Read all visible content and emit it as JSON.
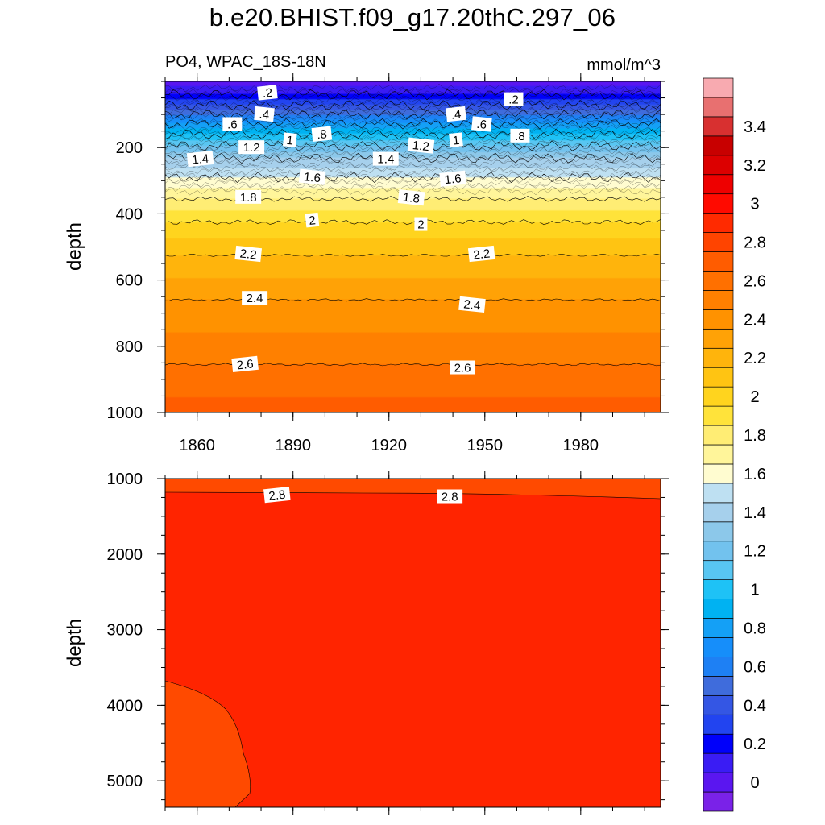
{
  "page": {
    "title": "b.e20.BHIST.f09_g17.20thC.297_06"
  },
  "chart_data": [
    {
      "type": "heatmap",
      "subtitle_left": "PO4, WPAC_18S-18N",
      "subtitle_right": "mmol/m^3",
      "ylabel": "depth",
      "xlim": [
        1850,
        2005
      ],
      "ylim": [
        1000,
        0
      ],
      "x_ticks": [
        1860,
        1890,
        1920,
        1950,
        1980
      ],
      "y_ticks": [
        200,
        400,
        600,
        800,
        1000
      ],
      "contour_levels": [
        {
          "value": 0.2,
          "depth": 40
        },
        {
          "value": 0.4,
          "depth": 72
        },
        {
          "value": 0.6,
          "depth": 100
        },
        {
          "value": 0.8,
          "depth": 128
        },
        {
          "value": 1.0,
          "depth": 160
        },
        {
          "value": 1.2,
          "depth": 195
        },
        {
          "value": 1.4,
          "depth": 232
        },
        {
          "value": 1.6,
          "depth": 290
        },
        {
          "value": 1.8,
          "depth": 355
        },
        {
          "value": 2.0,
          "depth": 425
        },
        {
          "value": 2.2,
          "depth": 525
        },
        {
          "value": 2.4,
          "depth": 660
        },
        {
          "value": 2.6,
          "depth": 855
        }
      ],
      "contour_labels": [
        {
          "text": ".2",
          "x": 1882,
          "depth": 35
        },
        {
          "text": ".2",
          "x": 1959,
          "depth": 55
        },
        {
          "text": ".4",
          "x": 1881,
          "depth": 100
        },
        {
          "text": ".4",
          "x": 1941,
          "depth": 100
        },
        {
          "text": ".6",
          "x": 1871,
          "depth": 130
        },
        {
          "text": ".6",
          "x": 1949,
          "depth": 130
        },
        {
          "text": ".8",
          "x": 1899,
          "depth": 160
        },
        {
          "text": ".8",
          "x": 1961,
          "depth": 165
        },
        {
          "text": "1",
          "x": 1889,
          "depth": 178
        },
        {
          "text": "1",
          "x": 1941,
          "depth": 178
        },
        {
          "text": "1.2",
          "x": 1877,
          "depth": 200
        },
        {
          "text": "1.2",
          "x": 1930,
          "depth": 195
        },
        {
          "text": "1.4",
          "x": 1861,
          "depth": 235
        },
        {
          "text": "1.4",
          "x": 1919,
          "depth": 235
        },
        {
          "text": "1.6",
          "x": 1896,
          "depth": 290
        },
        {
          "text": "1.6",
          "x": 1940,
          "depth": 295
        },
        {
          "text": "1.8",
          "x": 1876,
          "depth": 350
        },
        {
          "text": "1.8",
          "x": 1927,
          "depth": 352
        },
        {
          "text": "2",
          "x": 1896,
          "depth": 420
        },
        {
          "text": "2",
          "x": 1930,
          "depth": 432
        },
        {
          "text": "2.2",
          "x": 1876,
          "depth": 522
        },
        {
          "text": "2.2",
          "x": 1949,
          "depth": 522
        },
        {
          "text": "2.4",
          "x": 1878,
          "depth": 655
        },
        {
          "text": "2.4",
          "x": 1946,
          "depth": 675
        },
        {
          "text": "2.6",
          "x": 1875,
          "depth": 855
        },
        {
          "text": "2.6",
          "x": 1943,
          "depth": 865
        }
      ]
    },
    {
      "type": "heatmap",
      "ylabel": "depth",
      "xlim": [
        1850,
        2005
      ],
      "ylim": [
        5350,
        1000
      ],
      "y_ticks": [
        1000,
        2000,
        3000,
        4000,
        5000
      ],
      "background_value": 2.85,
      "contour_levels": [
        {
          "value": 2.8,
          "depth": 1200
        }
      ],
      "deep_region": {
        "value": 2.75,
        "note": "lower-left patch below about 3700 m"
      },
      "contour_labels": [
        {
          "text": "2.8",
          "x": 1885,
          "depth": 1220
        },
        {
          "text": "2.8",
          "x": 1939,
          "depth": 1240
        }
      ]
    }
  ],
  "colorbar": {
    "tick_labels": [
      "0",
      "0.2",
      "0.4",
      "0.6",
      "0.8",
      "1",
      "1.2",
      "1.4",
      "1.6",
      "1.8",
      "2",
      "2.2",
      "2.4",
      "2.6",
      "2.8",
      "3",
      "3.2",
      "3.4"
    ],
    "colors": [
      "#7a22e8",
      "#5a16f0",
      "#3a1cf4",
      "#0000fa",
      "#2244f0",
      "#3456e4",
      "#3f6cdc",
      "#1e80f4",
      "#168efa",
      "#14a0f6",
      "#00b2f2",
      "#1ec2f6",
      "#58c6f2",
      "#72c2ee",
      "#8cc8ea",
      "#a6d0ec",
      "#bee0f2",
      "#fffcd0",
      "#fff59a",
      "#ffed74",
      "#ffe33a",
      "#ffd41e",
      "#ffc412",
      "#ffb40c",
      "#ffa206",
      "#ff9200",
      "#ff8000",
      "#ff7000",
      "#ff5c00",
      "#ff4400",
      "#ff2a00",
      "#ff0a00",
      "#ee0000",
      "#dc0000",
      "#c80000",
      "#d83030",
      "#e87070",
      "#f8aab0"
    ]
  }
}
